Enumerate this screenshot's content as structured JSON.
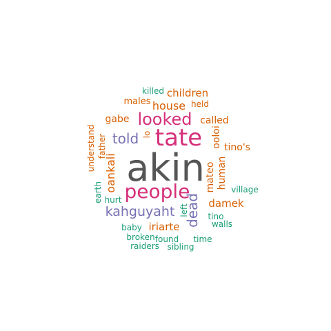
{
  "colors": {
    "dark": "#555555",
    "pink": "#D6307A",
    "purple": "#7570B3",
    "orange": "#D95F02",
    "teal": "#1B9E77"
  },
  "words": [
    {
      "text": "akin",
      "color": "dark"
    },
    {
      "text": "tate",
      "color": "pink"
    },
    {
      "text": "people",
      "color": "pink"
    },
    {
      "text": "looked",
      "color": "pink"
    },
    {
      "text": "told",
      "color": "purple"
    },
    {
      "text": "kahguyaht",
      "color": "purple"
    },
    {
      "text": "dead",
      "color": "purple"
    },
    {
      "text": "house",
      "color": "orange"
    },
    {
      "text": "children",
      "color": "orange"
    },
    {
      "text": "oankali",
      "color": "orange"
    },
    {
      "text": "iriarte",
      "color": "orange"
    },
    {
      "text": "damek",
      "color": "orange"
    },
    {
      "text": "human",
      "color": "orange"
    },
    {
      "text": "mateo",
      "color": "orange"
    },
    {
      "text": "ooloi",
      "color": "orange"
    },
    {
      "text": "tino's",
      "color": "orange"
    },
    {
      "text": "called",
      "color": "orange"
    },
    {
      "text": "gabe",
      "color": "orange"
    },
    {
      "text": "lo",
      "color": "orange"
    },
    {
      "text": "males",
      "color": "orange"
    },
    {
      "text": "held",
      "color": "orange"
    },
    {
      "text": "understand",
      "color": "orange"
    },
    {
      "text": "father",
      "color": "orange"
    },
    {
      "text": "killed",
      "color": "teal"
    },
    {
      "text": "village",
      "color": "teal"
    },
    {
      "text": "earth",
      "color": "teal"
    },
    {
      "text": "hurt",
      "color": "teal"
    },
    {
      "text": "left",
      "color": "teal"
    },
    {
      "text": "tino",
      "color": "teal"
    },
    {
      "text": "walls",
      "color": "teal"
    },
    {
      "text": "baby",
      "color": "teal"
    },
    {
      "text": "broken",
      "color": "teal"
    },
    {
      "text": "found",
      "color": "teal"
    },
    {
      "text": "time",
      "color": "teal"
    },
    {
      "text": "raiders",
      "color": "teal"
    },
    {
      "text": "sibling",
      "color": "teal"
    }
  ]
}
